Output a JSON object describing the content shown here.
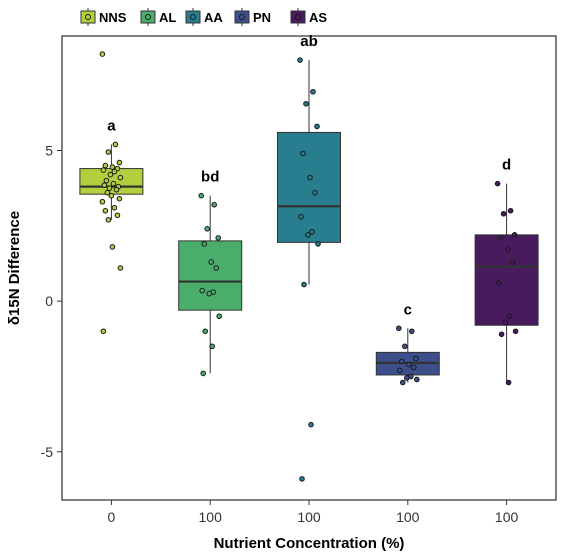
{
  "chart_data": {
    "type": "box",
    "xlabel": "Nutrient Concentration (%)",
    "ylabel": "δ15N Difference",
    "ylim": [
      -6.6,
      8.8
    ],
    "y_ticks": [
      -5,
      0,
      5
    ],
    "grid": false,
    "legend_position": "top-left",
    "categories": [
      "0",
      "100",
      "100",
      "100",
      "100"
    ],
    "series": [
      {
        "name": "NNS",
        "color": "#b2cf3e",
        "letter": "a",
        "q1": 3.55,
        "median": 3.8,
        "q3": 4.4,
        "whisker_low": 2.7,
        "whisker_high": 5.2,
        "points": [
          8.2,
          5.2,
          4.95,
          4.6,
          4.5,
          4.45,
          4.4,
          4.35,
          4.3,
          4.2,
          4.1,
          4.0,
          3.9,
          3.85,
          3.8,
          3.75,
          3.7,
          3.6,
          3.5,
          3.4,
          3.3,
          3.1,
          3.0,
          2.85,
          2.7,
          1.8,
          1.1,
          -1.0
        ]
      },
      {
        "name": "AL",
        "color": "#4aad6c",
        "letter": "bd",
        "q1": -0.3,
        "median": 0.65,
        "q3": 2.0,
        "whisker_low": -2.4,
        "whisker_high": 3.5,
        "points": [
          3.5,
          3.2,
          2.4,
          2.1,
          1.9,
          1.3,
          1.1,
          0.35,
          0.3,
          0.25,
          -0.5,
          -1.0,
          -1.5,
          -2.4
        ]
      },
      {
        "name": "AA",
        "color": "#287d8e",
        "letter": "ab",
        "q1": 1.95,
        "median": 3.15,
        "q3": 5.6,
        "whisker_low": 0.55,
        "whisker_high": 8.0,
        "points": [
          8.0,
          6.95,
          6.55,
          5.8,
          4.9,
          4.1,
          3.6,
          2.8,
          2.3,
          2.2,
          1.9,
          0.55,
          -4.1,
          -5.9
        ]
      },
      {
        "name": "PN",
        "color": "#3c4f8a",
        "letter": "c",
        "q1": -2.45,
        "median": -2.05,
        "q3": -1.7,
        "whisker_low": -2.7,
        "whisker_high": -0.9,
        "points": [
          -0.9,
          -1.0,
          -1.5,
          -1.9,
          -2.0,
          -2.1,
          -2.2,
          -2.3,
          -2.5,
          -2.55,
          -2.6,
          -2.7
        ]
      },
      {
        "name": "AS",
        "color": "#481b5e",
        "letter": "d",
        "q1": -0.8,
        "median": 1.15,
        "q3": 2.2,
        "whisker_low": -2.7,
        "whisker_high": 3.9,
        "points": [
          3.9,
          3.0,
          2.9,
          2.2,
          2.1,
          1.7,
          1.3,
          0.6,
          -0.5,
          -0.7,
          -1.0,
          -1.1,
          -2.7
        ]
      }
    ]
  }
}
